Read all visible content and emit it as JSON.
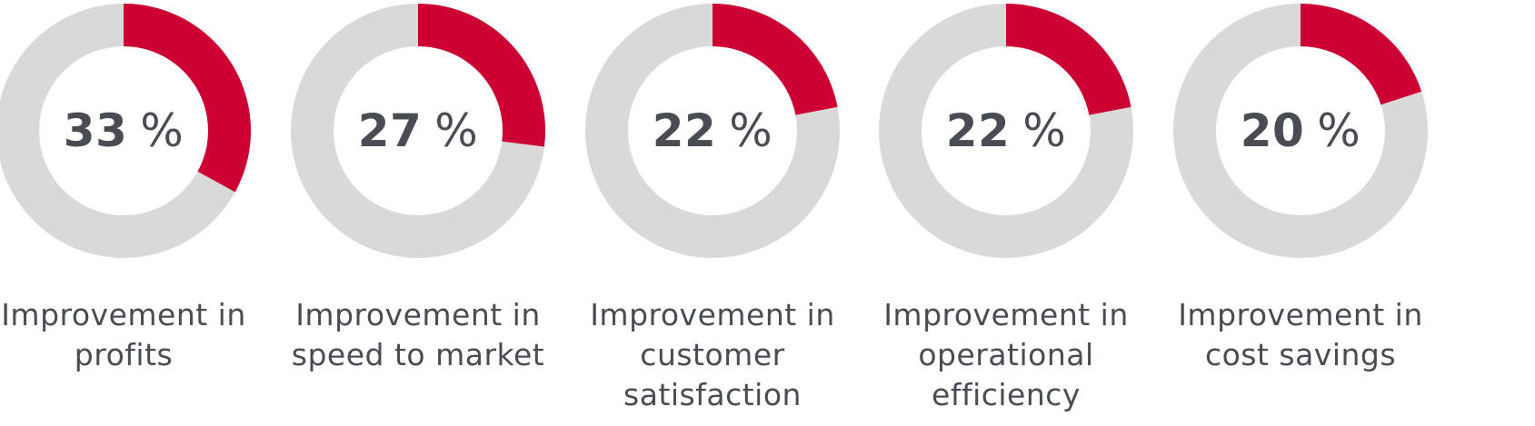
{
  "chart_data": {
    "type": "pie",
    "variant": "donut",
    "title": "",
    "colors": {
      "value": "#cc0033",
      "remainder": "#d9d9d9",
      "text": "#4a4c53"
    },
    "items": [
      {
        "value": 33,
        "unit": "%",
        "caption": [
          "Improvement in",
          "profits"
        ]
      },
      {
        "value": 27,
        "unit": "%",
        "caption": [
          "Improvement in",
          "speed to market"
        ]
      },
      {
        "value": 22,
        "unit": "%",
        "caption": [
          "Improvement in",
          "customer",
          "satisfaction"
        ]
      },
      {
        "value": 22,
        "unit": "%",
        "caption": [
          "Improvement in",
          "operational",
          "efficiency"
        ]
      },
      {
        "value": 20,
        "unit": "%",
        "caption": [
          "Improvement in",
          "cost savings"
        ]
      }
    ]
  }
}
